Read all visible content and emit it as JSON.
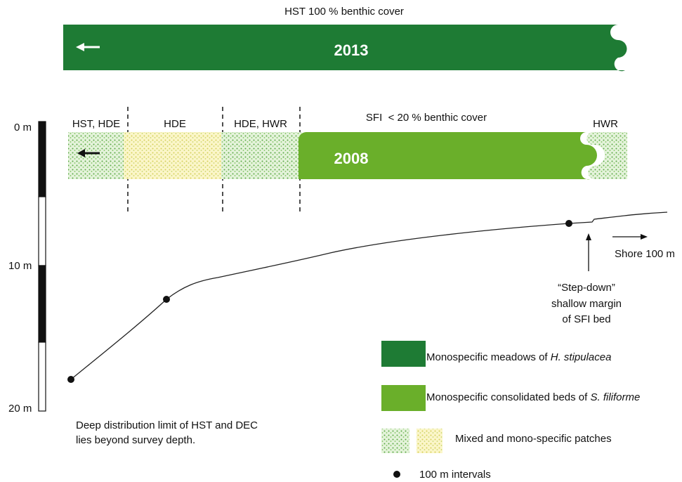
{
  "top_bar": {
    "caption": "HST 100 % benthic cover",
    "year": "2013"
  },
  "zones": [
    {
      "label": "HST, HDE"
    },
    {
      "label": "HDE"
    },
    {
      "label": "HDE, HWR"
    }
  ],
  "sfi_caption": "SFI  < 20 % benthic cover",
  "hwr_label": "HWR",
  "bottom_bar": {
    "year": "2008"
  },
  "depth_scale": {
    "labels": [
      "0 m",
      "10 m",
      "20 m"
    ]
  },
  "shore_label": "Shore 100 m",
  "step_down": {
    "lines": [
      "“Step-down”",
      "shallow margin",
      "of SFI bed"
    ]
  },
  "legend": [
    {
      "text": "Monospecific meadows of ",
      "italic": "H. stipulacea"
    },
    {
      "text": "Monospecific consolidated beds of ",
      "italic": "S. filiforme"
    },
    {
      "text": "Mixed and mono-specific patches"
    },
    {
      "text": "100 m intervals"
    }
  ],
  "note": {
    "lines": [
      "Deep distribution limit of HST and DEC",
      "lies beyond survey depth."
    ]
  }
}
